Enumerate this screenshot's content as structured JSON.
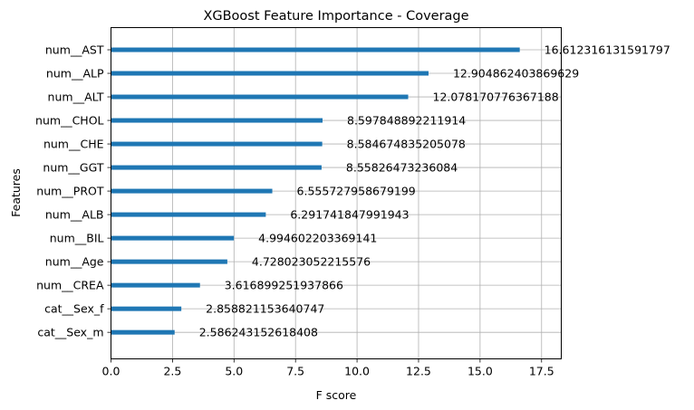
{
  "chart_data": {
    "type": "bar",
    "orientation": "horizontal",
    "title": "XGBoost Feature Importance - Coverage",
    "xlabel": "F score",
    "ylabel": "Features",
    "xlim": [
      0,
      18.3
    ],
    "xticks": [
      0.0,
      2.5,
      5.0,
      7.5,
      10.0,
      12.5,
      15.0,
      17.5
    ],
    "xtick_labels": [
      "0.0",
      "2.5",
      "5.0",
      "7.5",
      "10.0",
      "12.5",
      "15.0",
      "17.5"
    ],
    "grid": true,
    "bar_color": "#1f77b4",
    "categories": [
      "num__AST",
      "num__ALP",
      "num__ALT",
      "num__CHOL",
      "num__CHE",
      "num__GGT",
      "num__PROT",
      "num__ALB",
      "num__BIL",
      "num__Age",
      "num__CREA",
      "cat__Sex_f",
      "cat__Sex_m"
    ],
    "values": [
      16.612316131591797,
      12.904862403869629,
      12.078170776367188,
      8.597848892211914,
      8.584674835205078,
      8.55826473236084,
      6.555727958679199,
      6.291741847991943,
      4.994602203369141,
      4.728023052215576,
      3.616899251937866,
      2.858821153640747,
      2.586243152618408
    ],
    "value_labels": [
      "16.612316131591797",
      "12.904862403869629",
      "12.078170776367188",
      "8.597848892211914",
      "8.584674835205078",
      "8.55826473236084",
      "6.555727958679199",
      "6.291741847991943",
      "4.994602203369141",
      "4.728023052215576",
      "3.616899251937866",
      "2.858821153640747",
      "2.586243152618408"
    ]
  }
}
